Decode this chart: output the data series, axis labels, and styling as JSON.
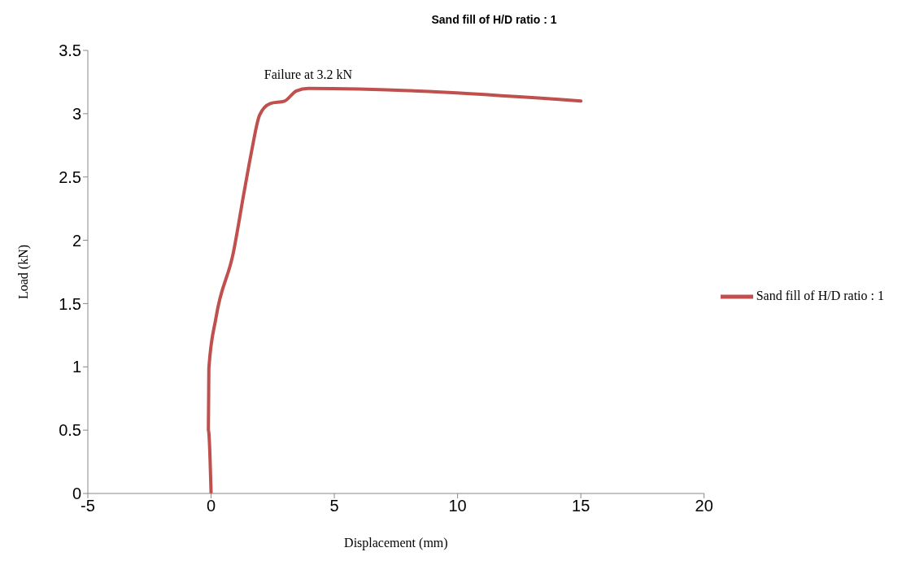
{
  "chart_data": {
    "type": "line",
    "title": "Sand fill of H/D ratio : 1",
    "xlabel": "Displacement (mm)",
    "ylabel": "Load (kN)",
    "series": [
      {
        "name": "Sand fill of H/D ratio : 1",
        "color": "#c0504d",
        "x": [
          0,
          -0.11,
          -0.09,
          0.2,
          0.9,
          1.33,
          1.64,
          1.97,
          2.4,
          2.98,
          3.46,
          3.94,
          15
        ],
        "values": [
          0,
          0.5,
          0.99,
          1.39,
          1.9,
          2.37,
          2.7,
          2.99,
          3.08,
          3.1,
          3.18,
          3.2,
          3.1
        ]
      }
    ],
    "xlim": [
      -5,
      20
    ],
    "xticks": [
      -5,
      0,
      5,
      10,
      15,
      20
    ],
    "ylim": [
      0,
      3.5
    ],
    "yticks": [
      0,
      0.5,
      1,
      1.5,
      2,
      2.5,
      3,
      3.5
    ],
    "annotations": [
      {
        "text": "Failure at 3.2 kN",
        "x": 3.94,
        "y": 3.2
      }
    ],
    "grid": false,
    "legend": "right",
    "marker": "none",
    "line_style": "solid"
  }
}
